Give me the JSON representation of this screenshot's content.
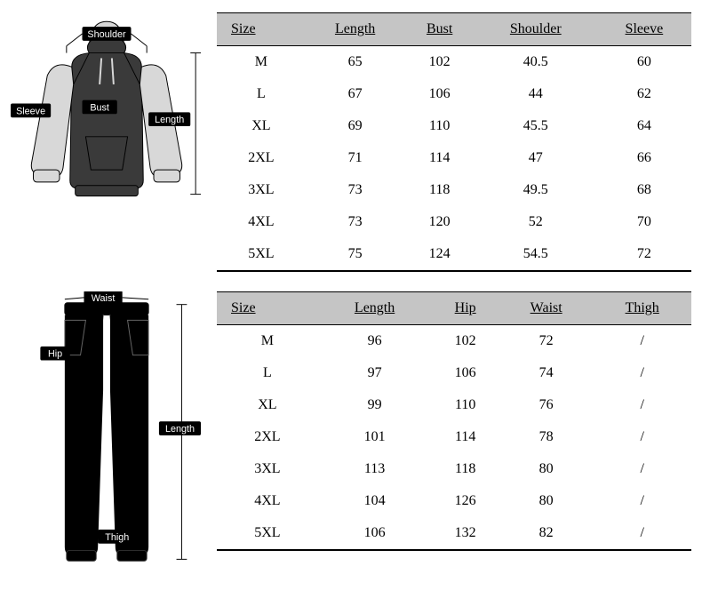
{
  "colors": {
    "header_bg": "#c5c5c5",
    "text": "#000000",
    "white": "#ffffff",
    "tag_bg": "#000000",
    "hoodie_body": "#3a3a3a",
    "hoodie_sleeve": "#d8d8d8",
    "hoodie_outline": "#000000",
    "pants_fill": "#000000"
  },
  "diagram_labels": {
    "shoulder": "Shoulder",
    "sleeve": "Sleeve",
    "bust": "Bust",
    "length": "Length",
    "waist": "Waist",
    "hip": "Hip",
    "thigh": "Thigh"
  },
  "top_table": {
    "columns": [
      "Size",
      "Length",
      "Bust",
      "Shoulder",
      "Sleeve"
    ],
    "rows": [
      [
        "M",
        "65",
        "102",
        "40.5",
        "60"
      ],
      [
        "L",
        "67",
        "106",
        "44",
        "62"
      ],
      [
        "XL",
        "69",
        "110",
        "45.5",
        "64"
      ],
      [
        "2XL",
        "71",
        "114",
        "47",
        "66"
      ],
      [
        "3XL",
        "73",
        "118",
        "49.5",
        "68"
      ],
      [
        "4XL",
        "73",
        "120",
        "52",
        "70"
      ],
      [
        "5XL",
        "75",
        "124",
        "54.5",
        "72"
      ]
    ]
  },
  "bottom_table": {
    "columns": [
      "Size",
      "Length",
      "Hip",
      "Waist",
      "Thigh"
    ],
    "rows": [
      [
        "M",
        "96",
        "102",
        "72",
        "/"
      ],
      [
        "L",
        "97",
        "106",
        "74",
        "/"
      ],
      [
        "XL",
        "99",
        "110",
        "76",
        "/"
      ],
      [
        "2XL",
        "101",
        "114",
        "78",
        "/"
      ],
      [
        "3XL",
        "113",
        "118",
        "80",
        "/"
      ],
      [
        "4XL",
        "104",
        "126",
        "80",
        "/"
      ],
      [
        "5XL",
        "106",
        "132",
        "82",
        "/"
      ]
    ]
  }
}
